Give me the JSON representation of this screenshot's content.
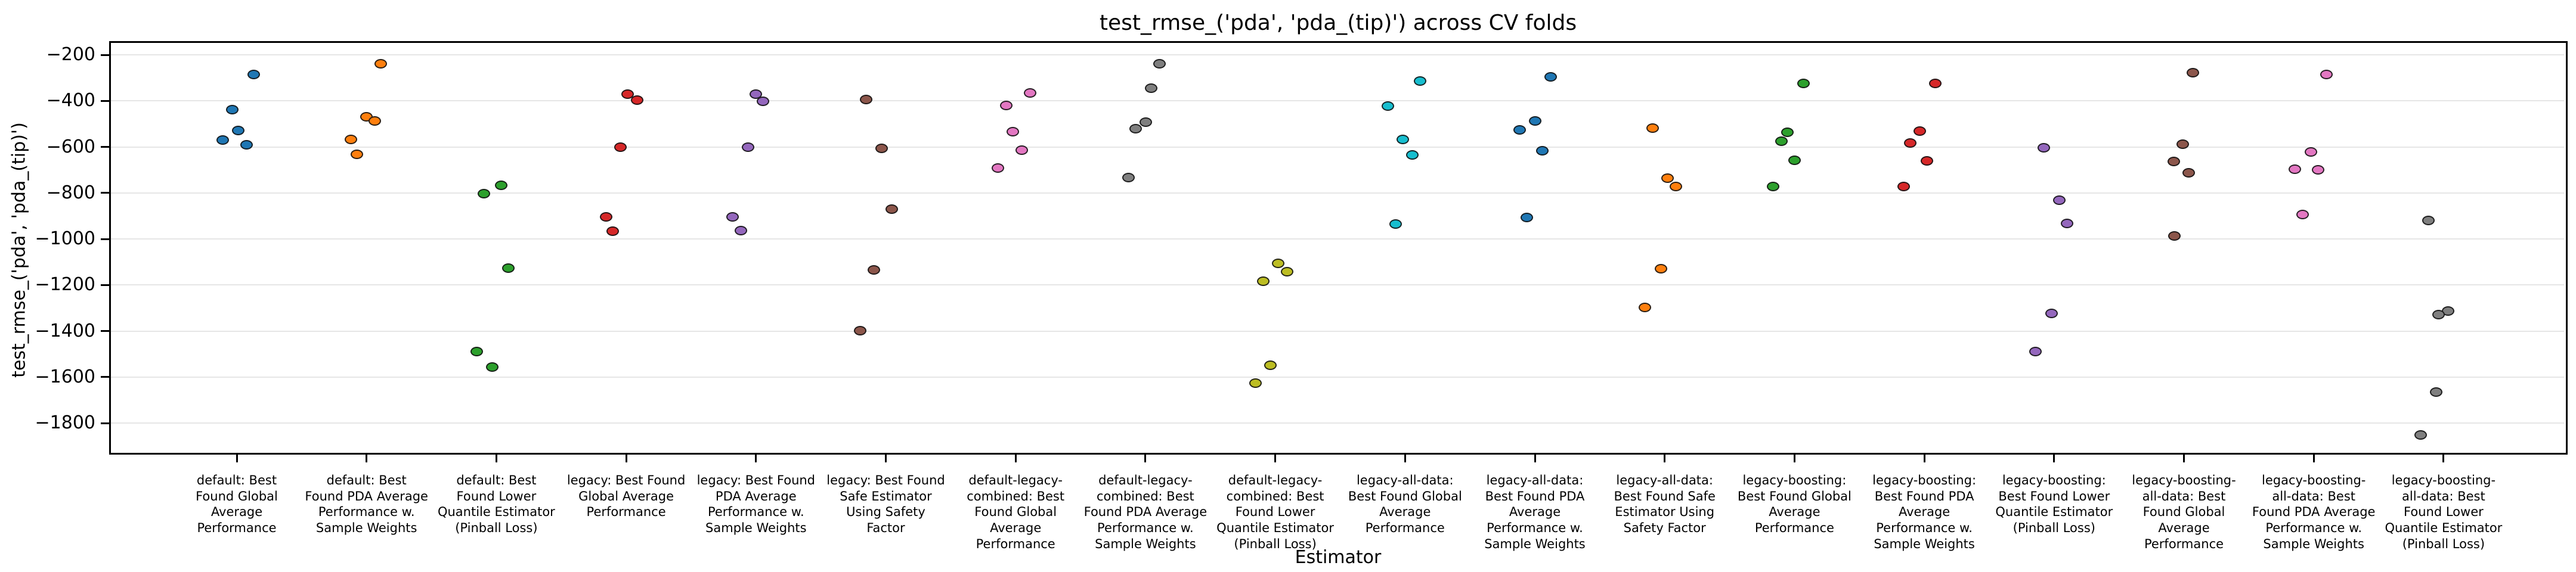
{
  "chart_data": {
    "type": "scatter",
    "title": "test_rmse_('pda', 'pda_(tip)') across CV folds",
    "xlabel": "Estimator",
    "ylabel": "test_rmse_('pda', 'pda_(tip)')",
    "grid": "horizontal",
    "legend_position": "none",
    "ylim": [
      -1933,
      -150
    ],
    "y_tick_values": [
      -200,
      -400,
      -600,
      -800,
      -1000,
      -1200,
      -1400,
      -1600,
      -1800
    ],
    "y_tick_labels": [
      "−200",
      "−400",
      "−600",
      "−800",
      "−1000",
      "−1200",
      "−1400",
      "−1600",
      "−1800"
    ],
    "points_per_group": 5,
    "marker_edge_color": "#141414",
    "groups": [
      {
        "label": "default: Best Found Global Average Performance",
        "label_lines": [
          "default: Best",
          "Found Global",
          "Average",
          "Performance"
        ],
        "color": "#1f77b4",
        "values": [
          -285,
          -437,
          -528,
          -571,
          -591
        ],
        "x_jitter": [
          28,
          -8,
          2,
          -24,
          16
        ]
      },
      {
        "label": "default: Best Found PDA Average Performance w. Sample Weights",
        "label_lines": [
          "default: Best",
          "Found PDA Average",
          "Performance w.",
          "Sample Weights"
        ],
        "color": "#ff7f0e",
        "values": [
          -238,
          -470,
          -488,
          -567,
          -632
        ],
        "x_jitter": [
          24,
          0,
          14,
          -26,
          -16
        ]
      },
      {
        "label": "default: Best Found Lower Quantile Estimator (Pinball Loss)",
        "label_lines": [
          "default: Best",
          "Found Lower",
          "Quantile Estimator",
          "(Pinball Loss)"
        ],
        "color": "#2ca02c",
        "values": [
          -767,
          -802,
          -1128,
          -1489,
          -1557
        ],
        "x_jitter": [
          8,
          -21,
          20,
          -33,
          -7
        ]
      },
      {
        "label": "legacy: Best Found Global Average Performance",
        "label_lines": [
          "legacy: Best Found",
          "Global Average",
          "Performance"
        ],
        "color": "#d62728",
        "values": [
          -370,
          -398,
          -600,
          -904,
          -966
        ],
        "x_jitter": [
          2,
          18,
          -10,
          -34,
          -23
        ]
      },
      {
        "label": "legacy: Best Found PDA Average Performance w. Sample Weights",
        "label_lines": [
          "legacy: Best Found",
          "PDA Average",
          "Performance w.",
          "Sample Weights"
        ],
        "color": "#9467bd",
        "values": [
          -370,
          -403,
          -601,
          -905,
          -963
        ],
        "x_jitter": [
          0,
          12,
          -13,
          -39,
          -25
        ]
      },
      {
        "label": "legacy: Best Found Safe Estimator Using Safety Factor",
        "label_lines": [
          "legacy: Best Found",
          "Safe Estimator",
          "Using Safety",
          "Factor"
        ],
        "color": "#8c564b",
        "values": [
          -395,
          -606,
          -871,
          -1135,
          -1398
        ],
        "x_jitter": [
          -33,
          -7,
          10,
          -20,
          -43
        ]
      },
      {
        "label": "default-legacy-combined: Best Found Global Average Performance",
        "label_lines": [
          "default-legacy-",
          "combined: Best",
          "Found Global",
          "Average",
          "Performance"
        ],
        "color": "#e377c2",
        "values": [
          -365,
          -421,
          -533,
          -615,
          -692
        ],
        "x_jitter": [
          24,
          -16,
          -5,
          10,
          -30
        ]
      },
      {
        "label": "default-legacy-combined: Best Found PDA Average Performance w. Sample Weights",
        "label_lines": [
          "default-legacy-",
          "combined: Best",
          "Found PDA Average",
          "Performance w.",
          "Sample Weights"
        ],
        "color": "#7f7f7f",
        "values": [
          -238,
          -344,
          -492,
          -520,
          -734
        ],
        "x_jitter": [
          24,
          10,
          1,
          -16,
          -28
        ]
      },
      {
        "label": "default-legacy-combined: Best Found Lower Quantile Estimator (Pinball Loss)",
        "label_lines": [
          "default-legacy-",
          "combined: Best",
          "Found Lower",
          "Quantile Estimator",
          "(Pinball Loss)"
        ],
        "color": "#bcbd22",
        "values": [
          -1105,
          -1142,
          -1185,
          -1550,
          -1627
        ],
        "x_jitter": [
          5,
          20,
          -20,
          -8,
          -33
        ]
      },
      {
        "label": "legacy-all-data: Best Found Global Average Performance",
        "label_lines": [
          "legacy-all-data:",
          "Best Found Global",
          "Average",
          "Performance"
        ],
        "color": "#17becf",
        "values": [
          -315,
          -422,
          -568,
          -635,
          -935
        ],
        "x_jitter": [
          25,
          -29,
          -4,
          12,
          -16
        ]
      },
      {
        "label": "legacy-all-data: Best Found PDA Average Performance w. Sample Weights",
        "label_lines": [
          "legacy-all-data:",
          "Best Found PDA",
          "Average",
          "Performance w.",
          "Sample Weights"
        ],
        "color": "#1f77b4",
        "values": [
          -295,
          -488,
          -526,
          -617,
          -907
        ],
        "x_jitter": [
          26,
          0,
          -26,
          12,
          -14
        ]
      },
      {
        "label": "legacy-all-data: Best Found Safe Estimator Using Safety Factor",
        "label_lines": [
          "legacy-all-data:",
          "Best Found Safe",
          "Estimator Using",
          "Safety Factor"
        ],
        "color": "#ff7f0e",
        "values": [
          -518,
          -735,
          -773,
          -1130,
          -1297
        ],
        "x_jitter": [
          -20,
          5,
          19,
          -6,
          -33
        ]
      },
      {
        "label": "legacy-boosting: Best Found Global Average Performance",
        "label_lines": [
          "legacy-boosting:",
          "Best Found Global",
          "Average",
          "Performance"
        ],
        "color": "#2ca02c",
        "values": [
          -323,
          -536,
          -576,
          -657,
          -773
        ],
        "x_jitter": [
          15,
          -12,
          -22,
          0,
          -36
        ]
      },
      {
        "label": "legacy-boosting: Best Found PDA Average Performance w. Sample Weights",
        "label_lines": [
          "legacy-boosting:",
          "Best Found PDA",
          "Average",
          "Performance w.",
          "Sample Weights"
        ],
        "color": "#d62728",
        "values": [
          -323,
          -532,
          -582,
          -661,
          -773
        ],
        "x_jitter": [
          18,
          -8,
          -24,
          4,
          -35
        ]
      },
      {
        "label": "legacy-boosting: Best Found Lower Quantile Estimator (Pinball Loss)",
        "label_lines": [
          "legacy-boosting:",
          "Best Found Lower",
          "Quantile Estimator",
          "(Pinball Loss)"
        ],
        "color": "#9467bd",
        "values": [
          -605,
          -831,
          -932,
          -1323,
          -1489
        ],
        "x_jitter": [
          -17,
          9,
          22,
          -4,
          -31
        ]
      },
      {
        "label": "legacy-boosting-all-data: Best Found Global Average Performance",
        "label_lines": [
          "legacy-boosting-",
          "all-data: Best",
          "Found Global",
          "Average",
          "Performance"
        ],
        "color": "#8c564b",
        "values": [
          -278,
          -589,
          -663,
          -712,
          -987
        ],
        "x_jitter": [
          15,
          -2,
          -17,
          8,
          -16
        ]
      },
      {
        "label": "legacy-boosting-all-data: Best Found PDA Average Performance w. Sample Weights",
        "label_lines": [
          "legacy-boosting-",
          "all-data: Best",
          "Found PDA Average",
          "Performance w.",
          "Sample Weights"
        ],
        "color": "#e377c2",
        "values": [
          -285,
          -621,
          -696,
          -700,
          -893
        ],
        "x_jitter": [
          21,
          -5,
          -32,
          7,
          -19
        ]
      },
      {
        "label": "legacy-boosting-all-data: Best Found Lower Quantile Estimator (Pinball Loss)",
        "label_lines": [
          "legacy-boosting-",
          "all-data: Best",
          "Found Lower",
          "Quantile Estimator",
          "(Pinball Loss)"
        ],
        "color": "#7f7f7f",
        "values": [
          -921,
          -1312,
          -1329,
          -1665,
          -1852
        ],
        "x_jitter": [
          -25,
          8,
          -8,
          -12,
          -38
        ]
      }
    ]
  }
}
